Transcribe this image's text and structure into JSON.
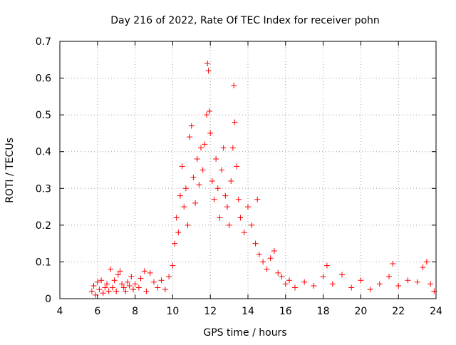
{
  "chart_data": {
    "type": "scatter",
    "title": "Day 216 of 2022, Rate Of TEC Index for receiver pohn",
    "xlabel": "GPS time / hours",
    "ylabel": "ROTI / TECUs",
    "xlim": [
      4,
      24
    ],
    "ylim": [
      0,
      0.7
    ],
    "xticks": [
      4,
      6,
      8,
      10,
      12,
      14,
      16,
      18,
      20,
      22,
      24
    ],
    "yticks": [
      0,
      0.1,
      0.2,
      0.3,
      0.4,
      0.5,
      0.6,
      0.7
    ],
    "xtick_labels": [
      "4",
      "6",
      "8",
      "10",
      "12",
      "14",
      "16",
      "18",
      "20",
      "22",
      "24"
    ],
    "ytick_labels": [
      "0",
      "0.1",
      "0.2",
      "0.3",
      "0.4",
      "0.5",
      "0.6",
      "0.7"
    ],
    "grid": true,
    "marker": "+",
    "color": "#ff0000",
    "series": [
      {
        "name": "ROTI",
        "points": [
          [
            5.7,
            0.02
          ],
          [
            5.8,
            0.035
          ],
          [
            5.9,
            0.01
          ],
          [
            6.0,
            0.045
          ],
          [
            6.1,
            0.025
          ],
          [
            6.2,
            0.05
          ],
          [
            6.3,
            0.015
          ],
          [
            6.4,
            0.03
          ],
          [
            6.5,
            0.04
          ],
          [
            6.6,
            0.02
          ],
          [
            6.7,
            0.08
          ],
          [
            6.8,
            0.03
          ],
          [
            6.9,
            0.05
          ],
          [
            7.0,
            0.02
          ],
          [
            7.1,
            0.065
          ],
          [
            7.2,
            0.075
          ],
          [
            7.3,
            0.04
          ],
          [
            7.4,
            0.03
          ],
          [
            7.5,
            0.02
          ],
          [
            7.6,
            0.045
          ],
          [
            7.7,
            0.035
          ],
          [
            7.8,
            0.06
          ],
          [
            7.9,
            0.025
          ],
          [
            8.0,
            0.04
          ],
          [
            8.2,
            0.03
          ],
          [
            8.3,
            0.055
          ],
          [
            8.5,
            0.075
          ],
          [
            8.6,
            0.02
          ],
          [
            8.8,
            0.07
          ],
          [
            9.0,
            0.045
          ],
          [
            9.2,
            0.03
          ],
          [
            9.4,
            0.05
          ],
          [
            9.6,
            0.025
          ],
          [
            9.8,
            0.06
          ],
          [
            10.0,
            0.09
          ],
          [
            10.1,
            0.15
          ],
          [
            10.2,
            0.22
          ],
          [
            10.3,
            0.18
          ],
          [
            10.4,
            0.28
          ],
          [
            10.5,
            0.36
          ],
          [
            10.6,
            0.25
          ],
          [
            10.7,
            0.3
          ],
          [
            10.8,
            0.2
          ],
          [
            10.9,
            0.44
          ],
          [
            11.0,
            0.47
          ],
          [
            11.1,
            0.33
          ],
          [
            11.2,
            0.26
          ],
          [
            11.3,
            0.38
          ],
          [
            11.4,
            0.31
          ],
          [
            11.5,
            0.41
          ],
          [
            11.6,
            0.35
          ],
          [
            11.7,
            0.42
          ],
          [
            11.8,
            0.5
          ],
          [
            11.85,
            0.64
          ],
          [
            11.9,
            0.62
          ],
          [
            11.95,
            0.51
          ],
          [
            12.0,
            0.45
          ],
          [
            12.1,
            0.32
          ],
          [
            12.2,
            0.27
          ],
          [
            12.3,
            0.38
          ],
          [
            12.4,
            0.3
          ],
          [
            12.5,
            0.22
          ],
          [
            12.6,
            0.35
          ],
          [
            12.7,
            0.41
          ],
          [
            12.8,
            0.28
          ],
          [
            12.9,
            0.25
          ],
          [
            13.0,
            0.2
          ],
          [
            13.1,
            0.32
          ],
          [
            13.2,
            0.41
          ],
          [
            13.25,
            0.58
          ],
          [
            13.3,
            0.48
          ],
          [
            13.4,
            0.36
          ],
          [
            13.5,
            0.27
          ],
          [
            13.6,
            0.22
          ],
          [
            13.8,
            0.18
          ],
          [
            14.0,
            0.25
          ],
          [
            14.2,
            0.2
          ],
          [
            14.4,
            0.15
          ],
          [
            14.5,
            0.27
          ],
          [
            14.6,
            0.12
          ],
          [
            14.8,
            0.1
          ],
          [
            15.0,
            0.08
          ],
          [
            15.2,
            0.11
          ],
          [
            15.4,
            0.13
          ],
          [
            15.6,
            0.07
          ],
          [
            15.8,
            0.06
          ],
          [
            16.0,
            0.04
          ],
          [
            16.2,
            0.05
          ],
          [
            16.5,
            0.03
          ],
          [
            17.0,
            0.045
          ],
          [
            17.5,
            0.035
          ],
          [
            18.0,
            0.06
          ],
          [
            18.2,
            0.09
          ],
          [
            18.5,
            0.04
          ],
          [
            19.0,
            0.065
          ],
          [
            19.5,
            0.03
          ],
          [
            20.0,
            0.05
          ],
          [
            20.5,
            0.025
          ],
          [
            21.0,
            0.04
          ],
          [
            21.5,
            0.06
          ],
          [
            21.7,
            0.095
          ],
          [
            22.0,
            0.035
          ],
          [
            22.5,
            0.05
          ],
          [
            23.0,
            0.045
          ],
          [
            23.3,
            0.085
          ],
          [
            23.5,
            0.1
          ],
          [
            23.7,
            0.04
          ],
          [
            23.9,
            0.02
          ]
        ]
      }
    ]
  }
}
